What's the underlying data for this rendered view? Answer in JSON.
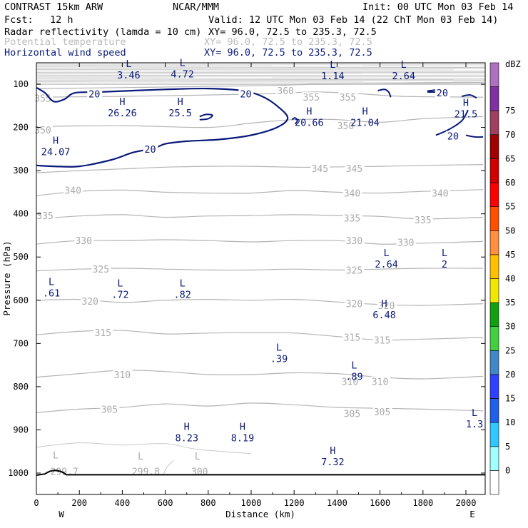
{
  "header": {
    "title": "CONTRAST 15km ARW",
    "org": "NCAR/MMM",
    "init": "Init: 00 UTC Mon 03 Feb 14",
    "fcst_label": "Fcst:",
    "fcst_value": "12 h",
    "valid": "Valid: 12 UTC Mon 03 Feb 14 (22 ChT Mon 03 Feb 14)",
    "fields": [
      {
        "name": "Radar reflectivity (lamda = 10 cm)",
        "xy": "XY=  96.0, 72.5 to 235.3, 72.5",
        "color": "#000000"
      },
      {
        "name": "Potential temperature",
        "xy": "XY=  96.0, 72.5 to 235.3, 72.5",
        "color": "#bbbbbb"
      },
      {
        "name": "Horizontal wind speed",
        "xy": "XY=  96.0, 72.5 to 235.3, 72.5",
        "color": "#0a1a7a"
      }
    ]
  },
  "chart_data": {
    "type": "cross-section",
    "xlabel": "Distance (km)",
    "ylabel": "Pressure (hPa)",
    "xlim": [
      0,
      2080
    ],
    "ylim": [
      1050,
      50
    ],
    "x_ticks": [
      0,
      200,
      400,
      600,
      800,
      1000,
      1200,
      1400,
      1600,
      1800,
      2000
    ],
    "y_ticks": [
      100,
      200,
      300,
      400,
      500,
      600,
      700,
      800,
      900,
      1000
    ],
    "direction_labels": {
      "west": "W",
      "east": "E"
    },
    "theta_contours": [
      {
        "value": 305,
        "pts": [
          [
            0,
            860
          ],
          [
            200,
            852
          ],
          [
            400,
            848
          ],
          [
            600,
            840
          ],
          [
            800,
            845
          ],
          [
            1000,
            838
          ],
          [
            1200,
            842
          ],
          [
            1400,
            848
          ],
          [
            1600,
            850
          ],
          [
            1800,
            852
          ],
          [
            2080,
            856
          ]
        ],
        "labels": [
          {
            "text": "305",
            "x": 340,
            "p": 852
          },
          {
            "text": "305",
            "x": 1470,
            "p": 862
          },
          {
            "text": "305",
            "x": 1610,
            "p": 858
          }
        ]
      },
      {
        "value": 310,
        "pts": [
          [
            0,
            778
          ],
          [
            200,
            770
          ],
          [
            400,
            762
          ],
          [
            600,
            765
          ],
          [
            800,
            772
          ],
          [
            1000,
            772
          ],
          [
            1200,
            768
          ],
          [
            1400,
            770
          ],
          [
            1600,
            778
          ],
          [
            1800,
            782
          ],
          [
            2080,
            776
          ]
        ],
        "labels": [
          {
            "text": "310",
            "x": 400,
            "p": 772
          },
          {
            "text": "310",
            "x": 1460,
            "p": 788
          },
          {
            "text": "310",
            "x": 1600,
            "p": 788
          }
        ]
      },
      {
        "value": 315,
        "pts": [
          [
            0,
            680
          ],
          [
            200,
            672
          ],
          [
            400,
            670
          ],
          [
            600,
            678
          ],
          [
            800,
            676
          ],
          [
            1000,
            675
          ],
          [
            1200,
            676
          ],
          [
            1400,
            684
          ],
          [
            1600,
            692
          ],
          [
            1800,
            690
          ],
          [
            2080,
            686
          ]
        ],
        "labels": [
          {
            "text": "315",
            "x": 310,
            "p": 675
          },
          {
            "text": "315",
            "x": 1470,
            "p": 685
          },
          {
            "text": "315",
            "x": 1610,
            "p": 692
          }
        ]
      },
      {
        "value": 320,
        "pts": [
          [
            0,
            600
          ],
          [
            200,
            598
          ],
          [
            400,
            605
          ],
          [
            600,
            600
          ],
          [
            800,
            598
          ],
          [
            1000,
            600
          ],
          [
            1200,
            598
          ],
          [
            1400,
            604
          ],
          [
            1600,
            610
          ],
          [
            1800,
            612
          ],
          [
            2080,
            608
          ]
        ],
        "labels": [
          {
            "text": "320",
            "x": 250,
            "p": 602
          },
          {
            "text": "320",
            "x": 1480,
            "p": 608
          },
          {
            "text": "320",
            "x": 1630,
            "p": 612
          }
        ]
      },
      {
        "value": 325,
        "pts": [
          [
            0,
            532
          ],
          [
            200,
            528
          ],
          [
            400,
            526
          ],
          [
            600,
            528
          ],
          [
            800,
            530
          ],
          [
            1000,
            530
          ],
          [
            1200,
            528
          ],
          [
            1400,
            530
          ],
          [
            1600,
            528
          ],
          [
            1800,
            526
          ],
          [
            2080,
            526
          ]
        ],
        "labels": [
          {
            "text": "325",
            "x": 300,
            "p": 528
          },
          {
            "text": "325",
            "x": 1480,
            "p": 530
          }
        ]
      },
      {
        "value": 330,
        "pts": [
          [
            0,
            470
          ],
          [
            200,
            462
          ],
          [
            400,
            462
          ],
          [
            600,
            460
          ],
          [
            800,
            462
          ],
          [
            1000,
            465
          ],
          [
            1200,
            462
          ],
          [
            1400,
            462
          ],
          [
            1600,
            470
          ],
          [
            1800,
            468
          ],
          [
            2080,
            464
          ]
        ],
        "labels": [
          {
            "text": "330",
            "x": 220,
            "p": 462
          },
          {
            "text": "330",
            "x": 1480,
            "p": 462
          },
          {
            "text": "330",
            "x": 1720,
            "p": 466
          }
        ]
      },
      {
        "value": 335,
        "pts": [
          [
            0,
            412
          ],
          [
            200,
            405
          ],
          [
            400,
            402
          ],
          [
            600,
            408
          ],
          [
            800,
            405
          ],
          [
            1000,
            404
          ],
          [
            1200,
            402
          ],
          [
            1400,
            404
          ],
          [
            1600,
            406
          ],
          [
            1800,
            412
          ],
          [
            2080,
            408
          ]
        ],
        "labels": [
          {
            "text": "335",
            "x": 40,
            "p": 404
          },
          {
            "text": "335",
            "x": 1470,
            "p": 410
          },
          {
            "text": "335",
            "x": 1800,
            "p": 414
          }
        ]
      },
      {
        "value": 340,
        "pts": [
          [
            0,
            358
          ],
          [
            200,
            348
          ],
          [
            400,
            345
          ],
          [
            600,
            350
          ],
          [
            800,
            352
          ],
          [
            1000,
            352
          ],
          [
            1200,
            346
          ],
          [
            1400,
            350
          ],
          [
            1600,
            352
          ],
          [
            1800,
            348
          ],
          [
            2080,
            344
          ]
        ],
        "labels": [
          {
            "text": "340",
            "x": 170,
            "p": 345
          },
          {
            "text": "340",
            "x": 1470,
            "p": 352
          },
          {
            "text": "340",
            "x": 1880,
            "p": 352
          }
        ]
      },
      {
        "value": 345,
        "pts": [
          [
            0,
            305
          ],
          [
            200,
            300
          ],
          [
            400,
            296
          ],
          [
            600,
            292
          ],
          [
            800,
            290
          ],
          [
            1000,
            290
          ],
          [
            1200,
            292
          ],
          [
            1300,
            292
          ],
          [
            1600,
            290
          ],
          [
            1800,
            288
          ],
          [
            2080,
            286
          ]
        ],
        "labels": [
          {
            "text": "345",
            "x": 1320,
            "p": 295
          },
          {
            "text": "345",
            "x": 1480,
            "p": 295
          }
        ]
      },
      {
        "value": 350,
        "pts": [
          [
            0,
            198
          ],
          [
            400,
            196
          ],
          [
            800,
            200
          ],
          [
            1000,
            190
          ],
          [
            1200,
            182
          ],
          [
            1400,
            182
          ],
          [
            1600,
            188
          ],
          [
            1800,
            180
          ],
          [
            2080,
            175
          ]
        ],
        "labels": [
          {
            "text": "350",
            "x": 30,
            "p": 206
          },
          {
            "text": "350",
            "x": 1440,
            "p": 196
          }
        ]
      },
      {
        "value": 355,
        "pts": [
          [
            0,
            130
          ],
          [
            400,
            128
          ],
          [
            800,
            125
          ],
          [
            1100,
            122
          ],
          [
            1300,
            118
          ],
          [
            1500,
            122
          ],
          [
            1700,
            128
          ],
          [
            2080,
            130
          ]
        ],
        "labels": [
          {
            "text": "355",
            "x": 30,
            "p": 132
          },
          {
            "text": "355",
            "x": 1280,
            "p": 130
          },
          {
            "text": "355",
            "x": 1450,
            "p": 130
          }
        ]
      },
      {
        "value": 360,
        "pts": [
          [
            0,
            110
          ],
          [
            400,
            108
          ],
          [
            800,
            105
          ],
          [
            1100,
            103
          ],
          [
            1300,
            100
          ],
          [
            1600,
            98
          ],
          [
            2080,
            96
          ]
        ],
        "labels": [
          {
            "text": "360",
            "x": 1160,
            "p": 115
          }
        ]
      }
    ],
    "theta_low_labels": [
      {
        "text": "299.7",
        "x": 130,
        "p": 996
      },
      {
        "text": "299.8",
        "x": 510,
        "p": 996
      },
      {
        "text": "300",
        "x": 760,
        "p": 996
      }
    ],
    "theta_low_markers": [
      {
        "text": "L",
        "x": 90,
        "p": 958
      },
      {
        "text": "L",
        "x": 485,
        "p": 960
      },
      {
        "text": "L",
        "x": 750,
        "p": 960
      }
    ],
    "wind_contours": [
      {
        "value": 20,
        "label_positions": [
          {
            "x": 270,
            "p": 122
          },
          {
            "x": 975,
            "p": 122
          },
          {
            "x": 530,
            "p": 250
          },
          {
            "x": 1890,
            "p": 120
          },
          {
            "x": 1940,
            "p": 220
          }
        ]
      }
    ],
    "wind_extrema": [
      {
        "type": "L",
        "value": "3.46",
        "x": 430,
        "p": 80
      },
      {
        "type": "L",
        "value": "4.72",
        "x": 680,
        "p": 78
      },
      {
        "type": "L",
        "value": "1.14",
        "x": 1380,
        "p": 82
      },
      {
        "type": "L",
        "value": "2.64",
        "x": 1710,
        "p": 82
      },
      {
        "type": "H",
        "value": "26.26",
        "x": 400,
        "p": 168
      },
      {
        "type": "H",
        "value": "25.5",
        "x": 670,
        "p": 168
      },
      {
        "type": "H",
        "value": "20.66",
        "x": 1270,
        "p": 190
      },
      {
        "type": "H",
        "value": "21.04",
        "x": 1530,
        "p": 190
      },
      {
        "type": "H",
        "value": "21.5",
        "x": 2000,
        "p": 170
      },
      {
        "type": "H",
        "value": "24.07",
        "x": 90,
        "p": 258
      },
      {
        "type": "L",
        "value": "2.64",
        "x": 1630,
        "p": 518
      },
      {
        "type": "L",
        "value": "2",
        "x": 1900,
        "p": 518
      },
      {
        "type": "L",
        "value": ".61",
        "x": 70,
        "p": 585
      },
      {
        "type": "L",
        "value": ".72",
        "x": 390,
        "p": 588
      },
      {
        "type": "L",
        "value": ".82",
        "x": 680,
        "p": 588
      },
      {
        "type": "H",
        "value": "6.48",
        "x": 1620,
        "p": 635
      },
      {
        "type": "L",
        "value": ".39",
        "x": 1130,
        "p": 737
      },
      {
        "type": "L",
        "value": ".89",
        "x": 1480,
        "p": 778
      },
      {
        "type": "L",
        "value": "1.3",
        "x": 2040,
        "p": 888
      },
      {
        "type": "H",
        "value": "8.23",
        "x": 700,
        "p": 920
      },
      {
        "type": "H",
        "value": "8.19",
        "x": 960,
        "p": 920
      },
      {
        "type": "H",
        "value": "7.32",
        "x": 1380,
        "p": 975
      }
    ],
    "colorbar": {
      "title": "dBZ",
      "levels": [
        "0",
        "5",
        "10",
        "15",
        "20",
        "25",
        "30",
        "35",
        "40",
        "45",
        "50",
        "55",
        "60",
        "65",
        "70",
        "75"
      ],
      "colors": [
        "#ffffff",
        "#a0ffff",
        "#30c8ff",
        "#2060e8",
        "#3040ff",
        "#4088c8",
        "#40d040",
        "#10a010",
        "#f0e800",
        "#ffc000",
        "#ff9040",
        "#ff5000",
        "#ff0000",
        "#d00000",
        "#a00000",
        "#a04060",
        "#8030a0",
        "#b070c0"
      ]
    }
  }
}
